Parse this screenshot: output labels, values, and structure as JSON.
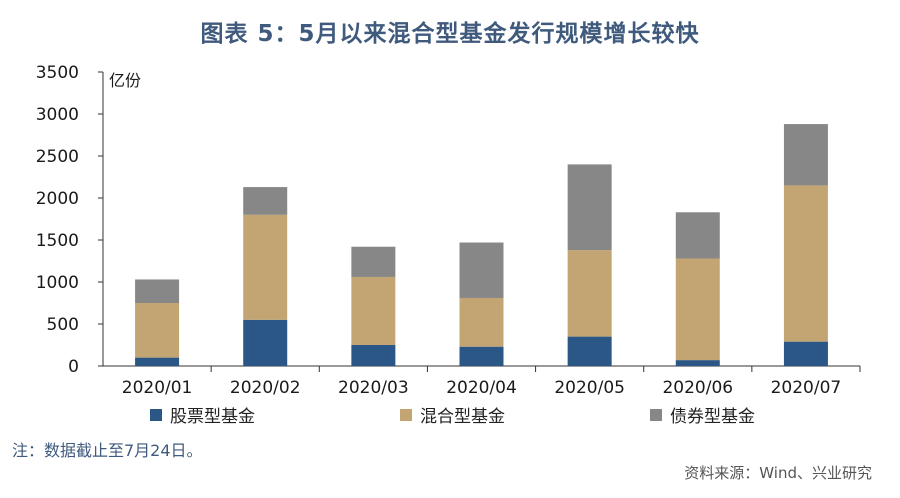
{
  "title": "图表 5：5月以来混合型基金发行规模增长较快",
  "note": "注：数据截止至7月24日。",
  "source": "资料来源：Wind、兴业研究",
  "chart_data": {
    "type": "bar",
    "stacked": true,
    "ylabel": "亿份",
    "ylim": [
      0,
      3500
    ],
    "yticks": [
      0,
      500,
      1000,
      1500,
      2000,
      2500,
      3000,
      3500
    ],
    "categories": [
      "2020/01",
      "2020/02",
      "2020/03",
      "2020/04",
      "2020/05",
      "2020/06",
      "2020/07"
    ],
    "series": [
      {
        "name": "股票型基金",
        "color": "#2a5785",
        "values": [
          100,
          550,
          250,
          230,
          350,
          70,
          290
        ]
      },
      {
        "name": "混合型基金",
        "color": "#c3a574",
        "values": [
          650,
          1250,
          810,
          580,
          1030,
          1210,
          1860
        ]
      },
      {
        "name": "债券型基金",
        "color": "#878787",
        "values": [
          280,
          330,
          360,
          660,
          1020,
          550,
          730
        ]
      }
    ],
    "legend_position": "bottom",
    "grid": false
  }
}
